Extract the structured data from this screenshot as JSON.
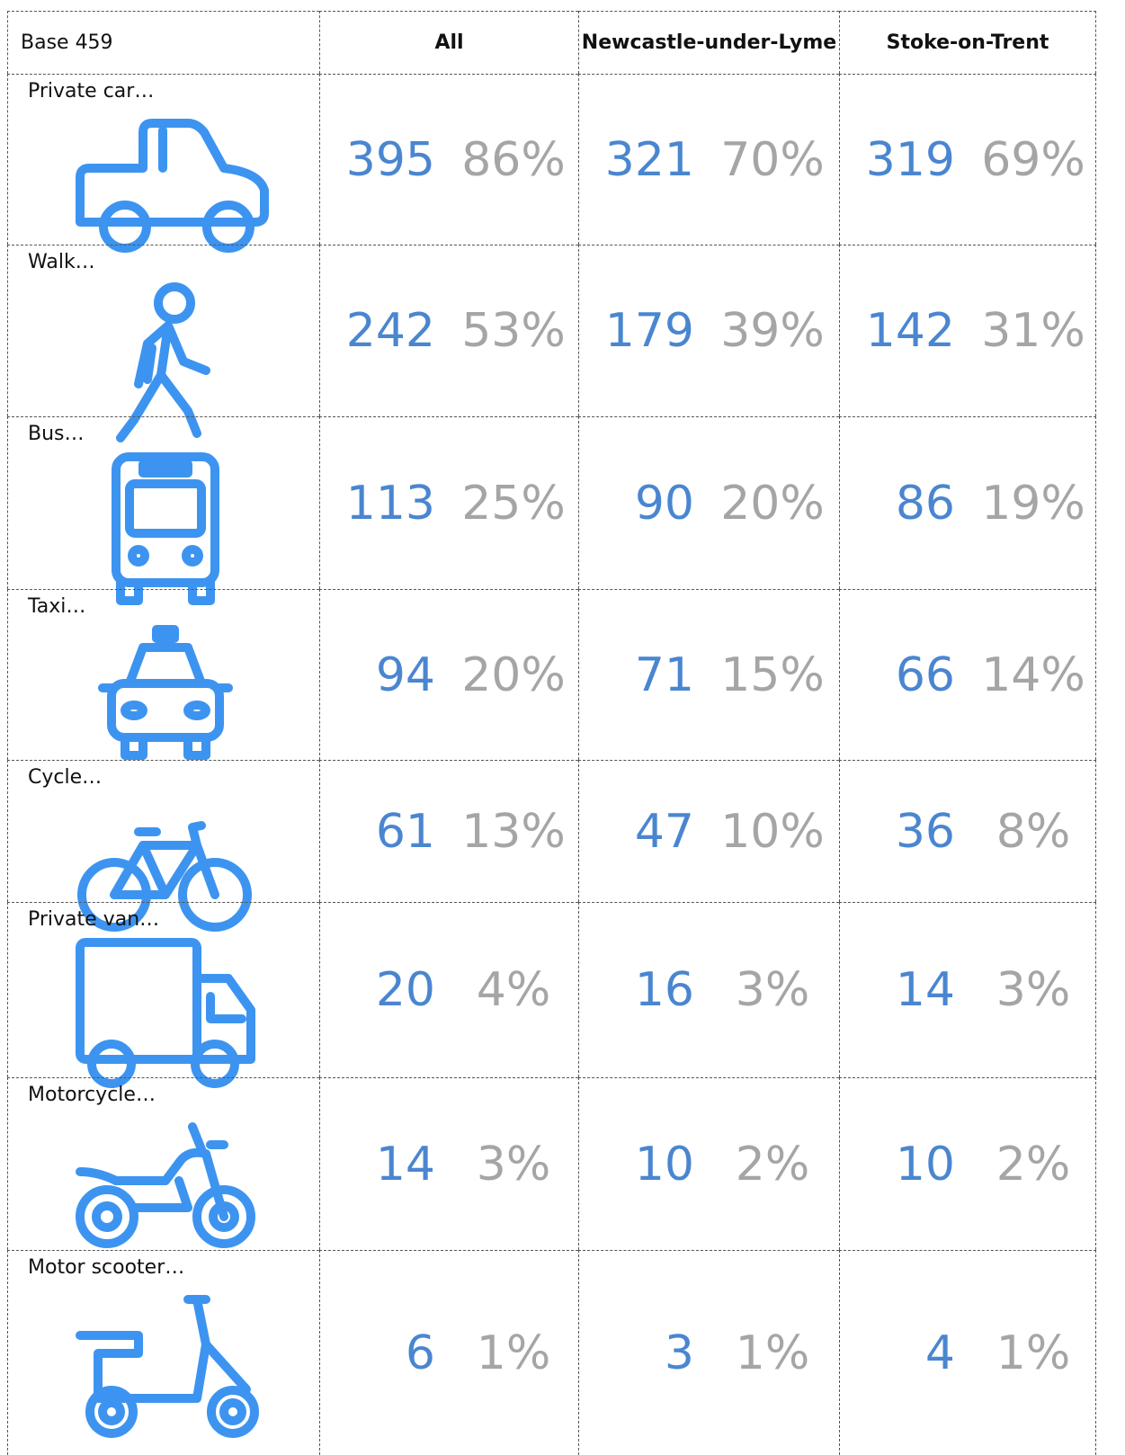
{
  "table": {
    "header": [
      "Base 459",
      "All",
      "Newcastle-under-Lyme",
      "Stoke-on-Trent"
    ],
    "rows": [
      {
        "label": "Private car…",
        "cells": [
          [
            "395",
            "86%"
          ],
          [
            "321",
            "70%"
          ],
          [
            "319",
            "69%"
          ]
        ]
      },
      {
        "label": "Walk…",
        "cells": [
          [
            "242",
            "53%"
          ],
          [
            "179",
            "39%"
          ],
          [
            "142",
            "31%"
          ]
        ]
      },
      {
        "label": "Bus…",
        "cells": [
          [
            "113",
            "25%"
          ],
          [
            "90",
            "20%"
          ],
          [
            "86",
            "19%"
          ]
        ]
      },
      {
        "label": "Taxi…",
        "cells": [
          [
            "94",
            "20%"
          ],
          [
            "71",
            "15%"
          ],
          [
            "66",
            "14%"
          ]
        ]
      },
      {
        "label": "Cycle…",
        "cells": [
          [
            "61",
            "13%"
          ],
          [
            "47",
            "10%"
          ],
          [
            "36",
            "8%"
          ]
        ]
      },
      {
        "label": "Private van…",
        "cells": [
          [
            "20",
            "4%"
          ],
          [
            "16",
            "3%"
          ],
          [
            "14",
            "3%"
          ]
        ]
      },
      {
        "label": "Motorcycle…",
        "cells": [
          [
            "14",
            "3%"
          ],
          [
            "10",
            "2%"
          ],
          [
            "10",
            "2%"
          ]
        ]
      },
      {
        "label": "Motor scooter…",
        "cells": [
          [
            "6",
            "1%"
          ],
          [
            "3",
            "1%"
          ],
          [
            "4",
            "1%"
          ]
        ]
      }
    ]
  }
}
